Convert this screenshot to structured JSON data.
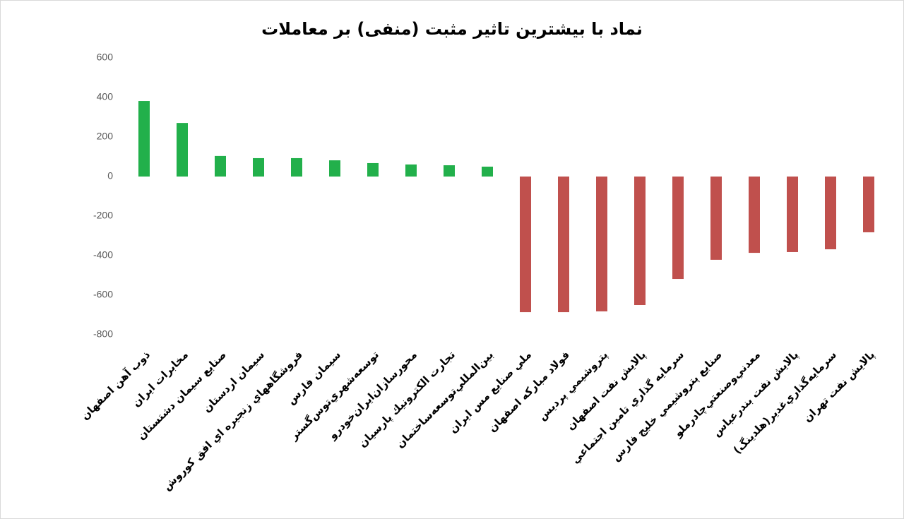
{
  "chart_data": {
    "type": "bar",
    "title": "نماد با بیشترین تاثیر مثبت (منفی) بر معاملات",
    "categories": [
      "ذوب آهن اصفهان",
      "مخابرات ايران",
      "صنايع سيمان دشتستان",
      "سيمان اردستان",
      "فروشگاههاي زنجيره اي افق كوروش",
      "سيمان فارس",
      "توسعه‌شهري‌توس‌گستر",
      "محورسازان‌ايران‌خودرو",
      "تجارت الكترونيك پارسيان",
      "بين‌المللي‌توسعه‌ساختمان",
      "ملي صنايع مس ايران",
      "فولاد مباركه اصفهان",
      "پتروشيمي پرديس",
      "پالايش نفت اصفهان",
      "سرمايه گذاري تامين اجتماعي",
      "صنايع پتروشيمي خليج فارس",
      "معدني‌وصنعتي‌چادرملو",
      "پالايش نفت بندرعباس",
      "سرمايه‌گذاري‌غدير(هلدينگ)",
      "پالايش نفت تهران"
    ],
    "values": [
      382,
      271,
      104,
      93,
      93,
      82,
      68,
      61,
      57,
      50,
      -686,
      -686,
      -682,
      -650,
      -518,
      -421,
      -386,
      -382,
      -368,
      -282
    ],
    "color_positive": "#22b04b",
    "color_negative": "#c0504d",
    "ylim": [
      -800,
      600
    ],
    "yticks": [
      600,
      400,
      200,
      0,
      -200,
      -400,
      -600,
      -800
    ]
  }
}
